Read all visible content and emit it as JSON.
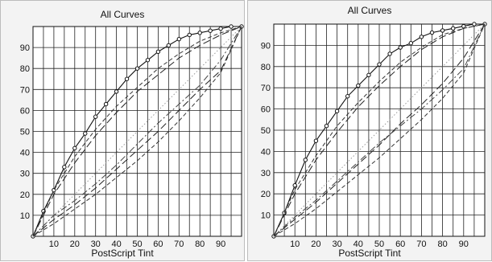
{
  "chart_data": [
    {
      "type": "line",
      "title": "All Curves",
      "xlabel": "PostScript Tint",
      "ylabel": "",
      "xlim": [
        0,
        100
      ],
      "ylim": [
        0,
        100
      ],
      "x_ticks": [
        10,
        20,
        30,
        40,
        50,
        60,
        70,
        80,
        90
      ],
      "y_ticks": [
        10,
        20,
        30,
        40,
        50,
        60,
        70,
        80,
        90
      ],
      "grid": true,
      "series": [
        {
          "style": "solid-markers",
          "x": [
            0,
            5,
            10,
            15,
            20,
            25,
            30,
            35,
            40,
            45,
            50,
            55,
            60,
            65,
            70,
            75,
            80,
            85,
            90,
            95,
            100
          ],
          "y": [
            0,
            12,
            22,
            33,
            42,
            49,
            57,
            63,
            69,
            75,
            80,
            84,
            88,
            91,
            94,
            96,
            97,
            98,
            99,
            100,
            100
          ]
        },
        {
          "style": "dash-long",
          "x": [
            0,
            10,
            20,
            30,
            40,
            50,
            60,
            70,
            80,
            90,
            100
          ],
          "y": [
            0,
            20,
            35,
            48,
            59,
            69,
            77,
            85,
            91,
            96,
            100
          ]
        },
        {
          "style": "dash-short",
          "x": [
            0,
            10,
            20,
            30,
            40,
            50,
            60,
            70,
            80,
            90,
            100
          ],
          "y": [
            0,
            22,
            38,
            51,
            62,
            71,
            80,
            87,
            93,
            97,
            100
          ]
        },
        {
          "style": "dotted",
          "x": [
            0,
            10,
            20,
            30,
            40,
            50,
            60,
            70,
            80,
            90,
            100
          ],
          "y": [
            0,
            10,
            20,
            30,
            40,
            50,
            60,
            70,
            80,
            90,
            100
          ]
        },
        {
          "style": "dash-long",
          "x": [
            0,
            10,
            20,
            30,
            40,
            50,
            60,
            70,
            80,
            90,
            100
          ],
          "y": [
            0,
            8,
            15,
            23,
            32,
            41,
            50,
            60,
            70,
            79,
            100
          ]
        },
        {
          "style": "dash-dot",
          "x": [
            0,
            10,
            20,
            30,
            40,
            50,
            60,
            70,
            80,
            90,
            100
          ],
          "y": [
            0,
            10,
            17,
            25,
            34,
            44,
            54,
            63,
            72,
            84,
            100
          ]
        },
        {
          "style": "dash-short",
          "x": [
            0,
            10,
            20,
            30,
            40,
            50,
            60,
            70,
            80,
            90,
            100
          ],
          "y": [
            0,
            6,
            13,
            20,
            28,
            36,
            45,
            55,
            66,
            78,
            100
          ]
        }
      ]
    },
    {
      "type": "line",
      "title": "All Curves",
      "xlabel": "PostScript Tint",
      "ylabel": "",
      "xlim": [
        0,
        100
      ],
      "ylim": [
        0,
        100
      ],
      "x_ticks": [
        10,
        20,
        30,
        40,
        50,
        60,
        70,
        80,
        90
      ],
      "y_ticks": [
        10,
        20,
        30,
        40,
        50,
        60,
        70,
        80,
        90
      ],
      "grid": true,
      "series": [
        {
          "style": "solid-markers",
          "x": [
            0,
            5,
            10,
            15,
            20,
            25,
            30,
            35,
            40,
            45,
            50,
            55,
            60,
            65,
            70,
            75,
            80,
            85,
            90,
            95,
            100
          ],
          "y": [
            0,
            11,
            24,
            36,
            45,
            52,
            59,
            66,
            71,
            76,
            81,
            86,
            89,
            91,
            94,
            96,
            97,
            98,
            99,
            100,
            100
          ]
        },
        {
          "style": "dash-long",
          "x": [
            0,
            10,
            20,
            30,
            40,
            50,
            60,
            70,
            80,
            90,
            100
          ],
          "y": [
            0,
            20,
            36,
            49,
            61,
            71,
            80,
            88,
            94,
            98,
            100
          ]
        },
        {
          "style": "dash-short",
          "x": [
            0,
            10,
            20,
            30,
            40,
            50,
            60,
            70,
            80,
            90,
            100
          ],
          "y": [
            0,
            22,
            38,
            52,
            63,
            73,
            82,
            89,
            95,
            98,
            100
          ]
        },
        {
          "style": "dotted",
          "x": [
            0,
            10,
            20,
            30,
            40,
            50,
            60,
            70,
            80,
            90,
            100
          ],
          "y": [
            0,
            10,
            20,
            30,
            40,
            50,
            60,
            70,
            80,
            90,
            100
          ]
        },
        {
          "style": "dash-long",
          "x": [
            0,
            10,
            20,
            30,
            40,
            50,
            60,
            70,
            80,
            90,
            100
          ],
          "y": [
            0,
            8,
            16,
            25,
            34,
            43,
            53,
            62,
            72,
            84,
            100
          ]
        },
        {
          "style": "dash-dot",
          "x": [
            0,
            10,
            20,
            30,
            40,
            50,
            60,
            70,
            80,
            90,
            100
          ],
          "y": [
            0,
            9,
            17,
            26,
            35,
            44,
            52,
            60,
            69,
            79,
            100
          ]
        },
        {
          "style": "dash-short",
          "x": [
            0,
            10,
            20,
            30,
            40,
            50,
            60,
            70,
            80,
            90,
            100
          ],
          "y": [
            0,
            6,
            13,
            21,
            29,
            37,
            46,
            55,
            65,
            77,
            100
          ]
        }
      ]
    }
  ]
}
